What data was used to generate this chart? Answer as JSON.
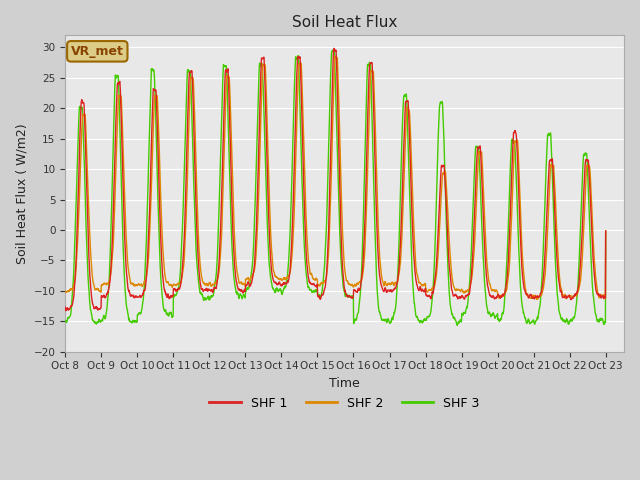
{
  "title": "Soil Heat Flux",
  "xlabel": "Time",
  "ylabel": "Soil Heat Flux ( W/m2)",
  "ylim": [
    -20,
    32
  ],
  "yticks": [
    -20,
    -15,
    -10,
    -5,
    0,
    5,
    10,
    15,
    20,
    25,
    30
  ],
  "xtick_labels": [
    "Oct 8",
    "Oct 9",
    "Oct 10",
    "Oct 11",
    "Oct 12",
    "Oct 13",
    "Oct 14",
    "Oct 15",
    "Oct 16",
    "Oct 17",
    "Oct 18",
    "Oct 19",
    "Oct 20",
    "Oct 21",
    "Oct 22",
    "Oct 23"
  ],
  "colors": {
    "SHF 1": "#dd2222",
    "SHF 2": "#dd8800",
    "SHF 3": "#44cc00"
  },
  "linewidth": 1.0,
  "fig_bg_color": "#d0d0d0",
  "plot_bg_color": "#e8e8e8",
  "grid_color": "#ffffff",
  "legend_label": "VR_met",
  "legend_box_facecolor": "#ddcc88",
  "legend_box_edgecolor": "#996600",
  "legend_text_color": "#884400"
}
